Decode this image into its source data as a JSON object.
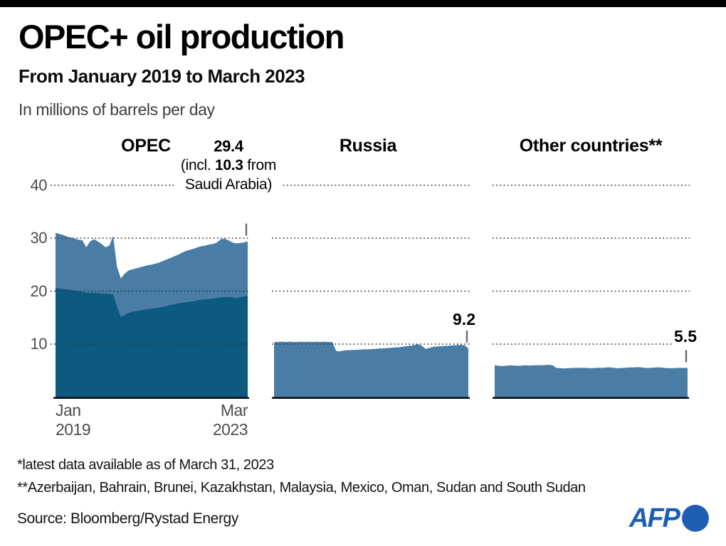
{
  "header": {
    "title": "OPEC+ oil production",
    "subtitle": "From January 2019 to March 2023",
    "units_note": "In millions of barrels per day"
  },
  "colors": {
    "light_blue": "#4a7da6",
    "dark_blue": "#0d5a80",
    "grid": "#333333",
    "axis_text": "#4c4c4c",
    "afp_blue": "#1e5fb3",
    "top_bar": "#000000"
  },
  "footnotes": [
    "*latest data available as of March 31, 2023",
    "**Azerbaijan, Bahrain, Brunei, Kazakhstan, Malaysia, Mexico, Oman, Sudan and South Sudan"
  ],
  "source": "Source: Bloomberg/Rystad Energy",
  "logo": {
    "text": "AFP"
  },
  "chart_data": {
    "type": "area",
    "x": {
      "start": "2019-01",
      "end": "2023-03",
      "step": "1 month",
      "points": 51
    },
    "x_axis_labels": {
      "start": [
        "Jan",
        "2019"
      ],
      "end": [
        "Mar",
        "2023"
      ]
    },
    "ylabel": "millions of barrels per day",
    "ylim": [
      0,
      45
    ],
    "yticks": [
      40,
      30,
      20,
      10
    ],
    "grid": "dotted horizontal lines per panel",
    "panels": [
      {
        "title": "OPEC",
        "annotation": {
          "value": "29.4",
          "pre": "(incl.",
          "bold": "10.3",
          "post": "from Saudi Arabia)"
        },
        "series": [
          {
            "name": "opec-total",
            "color_key": "light_blue",
            "values": [
              31.0,
              30.8,
              30.6,
              30.3,
              30.1,
              29.9,
              29.7,
              29.6,
              28.3,
              29.4,
              29.8,
              29.4,
              28.9,
              28.3,
              28.6,
              30.4,
              24.6,
              22.4,
              23.3,
              23.9,
              24.1,
              24.3,
              24.5,
              24.7,
              24.9,
              25.0,
              25.2,
              25.4,
              25.7,
              26.0,
              26.3,
              26.6,
              26.9,
              27.3,
              27.6,
              27.8,
              28.0,
              28.3,
              28.5,
              28.6,
              28.8,
              28.9,
              29.2,
              29.8,
              29.9,
              29.6,
              29.2,
              29.0,
              29.1,
              29.2,
              29.4
            ]
          },
          {
            "name": "opec-excluding-saudi-arabia",
            "color_key": "dark_blue",
            "values": [
              20.6,
              20.5,
              20.4,
              20.3,
              20.2,
              20.1,
              20.0,
              19.9,
              19.7,
              19.7,
              19.7,
              19.6,
              19.6,
              19.5,
              19.5,
              19.4,
              17.0,
              15.1,
              15.5,
              15.9,
              16.1,
              16.2,
              16.4,
              16.5,
              16.6,
              16.7,
              16.8,
              16.9,
              17.0,
              17.2,
              17.4,
              17.5,
              17.7,
              17.8,
              17.9,
              18.0,
              18.1,
              18.3,
              18.4,
              18.5,
              18.5,
              18.6,
              18.7,
              18.8,
              18.9,
              18.9,
              18.8,
              18.7,
              18.8,
              19.0,
              19.1
            ]
          }
        ]
      },
      {
        "title": "Russia",
        "end_label": "9.2",
        "series": [
          {
            "name": "russia",
            "color_key": "light_blue",
            "values": [
              10.4,
              10.4,
              10.45,
              10.4,
              10.45,
              10.4,
              10.4,
              10.45,
              10.4,
              10.45,
              10.4,
              10.45,
              10.4,
              10.45,
              10.4,
              10.4,
              8.7,
              8.65,
              8.8,
              8.85,
              8.9,
              8.9,
              8.95,
              9.0,
              9.0,
              9.05,
              9.1,
              9.15,
              9.2,
              9.25,
              9.3,
              9.35,
              9.4,
              9.5,
              9.6,
              9.7,
              9.8,
              10.0,
              9.7,
              9.1,
              9.3,
              9.5,
              9.55,
              9.6,
              9.65,
              9.7,
              9.75,
              9.8,
              9.85,
              9.8,
              9.2
            ]
          }
        ]
      },
      {
        "title": "Other countries**",
        "end_label": "5.5",
        "series": [
          {
            "name": "other-countries",
            "color_key": "light_blue",
            "values": [
              6.0,
              5.9,
              5.85,
              5.9,
              6.0,
              5.95,
              5.9,
              5.95,
              6.0,
              5.95,
              6.0,
              6.0,
              6.0,
              6.05,
              6.1,
              6.0,
              5.5,
              5.45,
              5.4,
              5.45,
              5.5,
              5.5,
              5.55,
              5.5,
              5.5,
              5.45,
              5.5,
              5.55,
              5.5,
              5.6,
              5.6,
              5.5,
              5.45,
              5.5,
              5.55,
              5.6,
              5.6,
              5.65,
              5.6,
              5.5,
              5.5,
              5.55,
              5.6,
              5.6,
              5.5,
              5.45,
              5.45,
              5.5,
              5.5,
              5.5,
              5.5
            ]
          }
        ]
      }
    ]
  }
}
